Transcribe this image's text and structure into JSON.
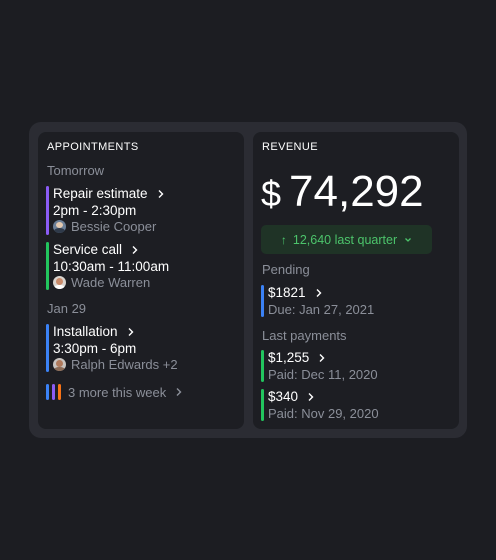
{
  "appointments": {
    "heading": "APPOINTMENTS",
    "groups": [
      {
        "label": "Tomorrow",
        "items": [
          {
            "title": "Repair estimate",
            "time": "2pm - 2:30pm",
            "person": "Bessie Cooper",
            "color": "#8b5cf6"
          },
          {
            "title": "Service call",
            "time": "10:30am - 11:00am",
            "person": "Wade Warren",
            "color": "#22c55e"
          }
        ]
      },
      {
        "label": "Jan 29",
        "items": [
          {
            "title": "Installation",
            "time": "3:30pm - 6pm",
            "person": "Ralph Edwards +2",
            "color": "#3b82f6"
          }
        ]
      }
    ],
    "more": {
      "label": "3 more this week",
      "colors": [
        "#3b82f6",
        "#8b5cf6",
        "#f97316"
      ]
    }
  },
  "revenue": {
    "heading": "REVENUE",
    "currency": "$",
    "total": "74,292",
    "change": {
      "label": "12,640 last quarter",
      "color": "#4cc46b"
    },
    "pending": {
      "label": "Pending",
      "items": [
        {
          "amount": "$1821",
          "note": "Due: Jan 27, 2021",
          "color": "#3b82f6"
        }
      ]
    },
    "last_payments": {
      "label": "Last payments",
      "items": [
        {
          "amount": "$1,255",
          "note": "Paid: Dec 11, 2020",
          "color": "#22c55e"
        },
        {
          "amount": "$340",
          "note": "Paid: Nov 29, 2020",
          "color": "#22c55e"
        }
      ]
    }
  }
}
